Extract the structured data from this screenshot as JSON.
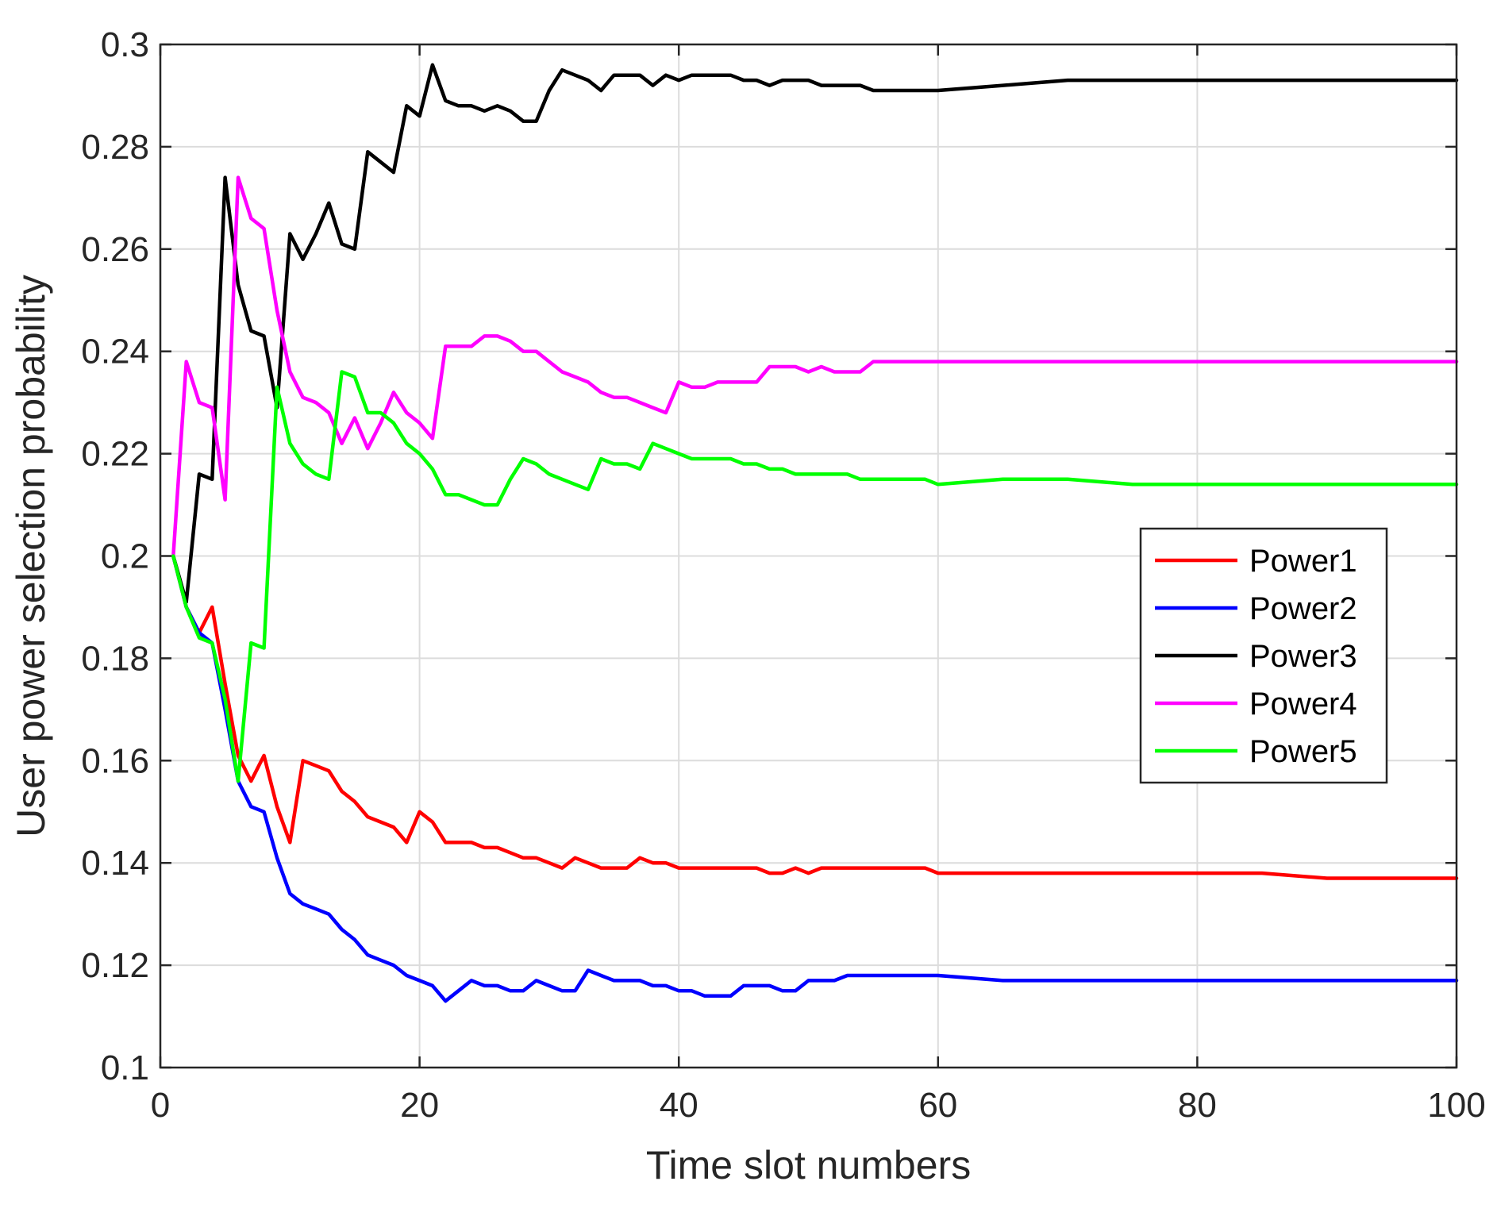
{
  "chart_data": {
    "type": "line",
    "title": "",
    "xlabel": "Time slot numbers",
    "ylabel": "User power selection probability",
    "xlim": [
      0,
      100
    ],
    "ylim": [
      0.1,
      0.3
    ],
    "xticks": [
      0,
      20,
      40,
      60,
      80,
      100
    ],
    "xtick_labels": [
      "0",
      "20",
      "40",
      "60",
      "80",
      "100"
    ],
    "yticks": [
      0.1,
      0.12,
      0.14,
      0.16,
      0.18,
      0.2,
      0.22,
      0.24,
      0.26,
      0.28,
      0.3
    ],
    "ytick_labels": [
      "0.1",
      "0.12",
      "0.14",
      "0.16",
      "0.18",
      "0.2",
      "0.22",
      "0.24",
      "0.26",
      "0.28",
      "0.3"
    ],
    "grid": true,
    "legend_position": "right",
    "series": [
      {
        "name": "Power1",
        "color": "#ff0000",
        "x": [
          1,
          2,
          3,
          4,
          5,
          6,
          7,
          8,
          9,
          10,
          11,
          12,
          13,
          14,
          15,
          16,
          17,
          18,
          19,
          20,
          21,
          22,
          23,
          24,
          25,
          26,
          27,
          28,
          29,
          30,
          31,
          32,
          33,
          34,
          35,
          36,
          37,
          38,
          39,
          40,
          41,
          42,
          43,
          44,
          45,
          46,
          47,
          48,
          49,
          50,
          51,
          52,
          53,
          54,
          55,
          56,
          57,
          58,
          59,
          60,
          65,
          70,
          75,
          80,
          85,
          90,
          95,
          100
        ],
        "values": [
          0.2,
          0.19,
          0.185,
          0.19,
          0.175,
          0.161,
          0.156,
          0.161,
          0.151,
          0.144,
          0.16,
          0.159,
          0.158,
          0.154,
          0.152,
          0.149,
          0.148,
          0.147,
          0.144,
          0.15,
          0.148,
          0.144,
          0.144,
          0.144,
          0.143,
          0.143,
          0.142,
          0.141,
          0.141,
          0.14,
          0.139,
          0.141,
          0.14,
          0.139,
          0.139,
          0.139,
          0.141,
          0.14,
          0.14,
          0.139,
          0.139,
          0.139,
          0.139,
          0.139,
          0.139,
          0.139,
          0.138,
          0.138,
          0.139,
          0.138,
          0.139,
          0.139,
          0.139,
          0.139,
          0.139,
          0.139,
          0.139,
          0.139,
          0.139,
          0.138,
          0.138,
          0.138,
          0.138,
          0.138,
          0.138,
          0.137,
          0.137,
          0.137
        ]
      },
      {
        "name": "Power2",
        "color": "#0000ff",
        "x": [
          1,
          2,
          3,
          4,
          5,
          6,
          7,
          8,
          9,
          10,
          11,
          12,
          13,
          14,
          15,
          16,
          17,
          18,
          19,
          20,
          21,
          22,
          23,
          24,
          25,
          26,
          27,
          28,
          29,
          30,
          31,
          32,
          33,
          34,
          35,
          36,
          37,
          38,
          39,
          40,
          41,
          42,
          43,
          44,
          45,
          46,
          47,
          48,
          49,
          50,
          51,
          52,
          53,
          54,
          55,
          56,
          57,
          58,
          59,
          60,
          65,
          70,
          75,
          80,
          85,
          90,
          95,
          100
        ],
        "values": [
          0.2,
          0.19,
          0.185,
          0.183,
          0.17,
          0.156,
          0.151,
          0.15,
          0.141,
          0.134,
          0.132,
          0.131,
          0.13,
          0.127,
          0.125,
          0.122,
          0.121,
          0.12,
          0.118,
          0.117,
          0.116,
          0.113,
          0.115,
          0.117,
          0.116,
          0.116,
          0.115,
          0.115,
          0.117,
          0.116,
          0.115,
          0.115,
          0.119,
          0.118,
          0.117,
          0.117,
          0.117,
          0.116,
          0.116,
          0.115,
          0.115,
          0.114,
          0.114,
          0.114,
          0.116,
          0.116,
          0.116,
          0.115,
          0.115,
          0.117,
          0.117,
          0.117,
          0.118,
          0.118,
          0.118,
          0.118,
          0.118,
          0.118,
          0.118,
          0.118,
          0.117,
          0.117,
          0.117,
          0.117,
          0.117,
          0.117,
          0.117,
          0.117
        ]
      },
      {
        "name": "Power3",
        "color": "#000000",
        "x": [
          1,
          2,
          3,
          4,
          5,
          6,
          7,
          8,
          9,
          10,
          11,
          12,
          13,
          14,
          15,
          16,
          17,
          18,
          19,
          20,
          21,
          22,
          23,
          24,
          25,
          26,
          27,
          28,
          29,
          30,
          31,
          32,
          33,
          34,
          35,
          36,
          37,
          38,
          39,
          40,
          41,
          42,
          43,
          44,
          45,
          46,
          47,
          48,
          49,
          50,
          51,
          52,
          53,
          54,
          55,
          56,
          57,
          58,
          59,
          60,
          65,
          70,
          75,
          80,
          85,
          90,
          95,
          100
        ],
        "values": [
          0.2,
          0.191,
          0.216,
          0.215,
          0.274,
          0.253,
          0.244,
          0.243,
          0.229,
          0.263,
          0.258,
          0.263,
          0.269,
          0.261,
          0.26,
          0.279,
          0.277,
          0.275,
          0.288,
          0.286,
          0.296,
          0.289,
          0.288,
          0.288,
          0.287,
          0.288,
          0.287,
          0.285,
          0.285,
          0.291,
          0.295,
          0.294,
          0.293,
          0.291,
          0.294,
          0.294,
          0.294,
          0.292,
          0.294,
          0.293,
          0.294,
          0.294,
          0.294,
          0.294,
          0.293,
          0.293,
          0.292,
          0.293,
          0.293,
          0.293,
          0.292,
          0.292,
          0.292,
          0.292,
          0.291,
          0.291,
          0.291,
          0.291,
          0.291,
          0.291,
          0.292,
          0.293,
          0.293,
          0.293,
          0.293,
          0.293,
          0.293,
          0.293
        ]
      },
      {
        "name": "Power4",
        "color": "#ff00ff",
        "x": [
          1,
          2,
          3,
          4,
          5,
          6,
          7,
          8,
          9,
          10,
          11,
          12,
          13,
          14,
          15,
          16,
          17,
          18,
          19,
          20,
          21,
          22,
          23,
          24,
          25,
          26,
          27,
          28,
          29,
          30,
          31,
          32,
          33,
          34,
          35,
          36,
          37,
          38,
          39,
          40,
          41,
          42,
          43,
          44,
          45,
          46,
          47,
          48,
          49,
          50,
          51,
          52,
          53,
          54,
          55,
          56,
          57,
          58,
          59,
          60,
          65,
          70,
          75,
          80,
          85,
          90,
          95,
          100
        ],
        "values": [
          0.2,
          0.238,
          0.23,
          0.229,
          0.211,
          0.274,
          0.266,
          0.264,
          0.248,
          0.236,
          0.231,
          0.23,
          0.228,
          0.222,
          0.227,
          0.221,
          0.226,
          0.232,
          0.228,
          0.226,
          0.223,
          0.241,
          0.241,
          0.241,
          0.243,
          0.243,
          0.242,
          0.24,
          0.24,
          0.238,
          0.236,
          0.235,
          0.234,
          0.232,
          0.231,
          0.231,
          0.23,
          0.229,
          0.228,
          0.234,
          0.233,
          0.233,
          0.234,
          0.234,
          0.234,
          0.234,
          0.237,
          0.237,
          0.237,
          0.236,
          0.237,
          0.236,
          0.236,
          0.236,
          0.238,
          0.238,
          0.238,
          0.238,
          0.238,
          0.238,
          0.238,
          0.238,
          0.238,
          0.238,
          0.238,
          0.238,
          0.238,
          0.238
        ]
      },
      {
        "name": "Power5",
        "color": "#00ff00",
        "x": [
          1,
          2,
          3,
          4,
          5,
          6,
          7,
          8,
          9,
          10,
          11,
          12,
          13,
          14,
          15,
          16,
          17,
          18,
          19,
          20,
          21,
          22,
          23,
          24,
          25,
          26,
          27,
          28,
          29,
          30,
          31,
          32,
          33,
          34,
          35,
          36,
          37,
          38,
          39,
          40,
          41,
          42,
          43,
          44,
          45,
          46,
          47,
          48,
          49,
          50,
          51,
          52,
          53,
          54,
          55,
          56,
          57,
          58,
          59,
          60,
          65,
          70,
          75,
          80,
          85,
          90,
          95,
          100
        ],
        "values": [
          0.2,
          0.19,
          0.184,
          0.183,
          0.172,
          0.156,
          0.183,
          0.182,
          0.233,
          0.222,
          0.218,
          0.216,
          0.215,
          0.236,
          0.235,
          0.228,
          0.228,
          0.226,
          0.222,
          0.22,
          0.217,
          0.212,
          0.212,
          0.211,
          0.21,
          0.21,
          0.215,
          0.219,
          0.218,
          0.216,
          0.215,
          0.214,
          0.213,
          0.219,
          0.218,
          0.218,
          0.217,
          0.222,
          0.221,
          0.22,
          0.219,
          0.219,
          0.219,
          0.219,
          0.218,
          0.218,
          0.217,
          0.217,
          0.216,
          0.216,
          0.216,
          0.216,
          0.216,
          0.215,
          0.215,
          0.215,
          0.215,
          0.215,
          0.215,
          0.214,
          0.215,
          0.215,
          0.214,
          0.214,
          0.214,
          0.214,
          0.214,
          0.214
        ]
      }
    ]
  }
}
